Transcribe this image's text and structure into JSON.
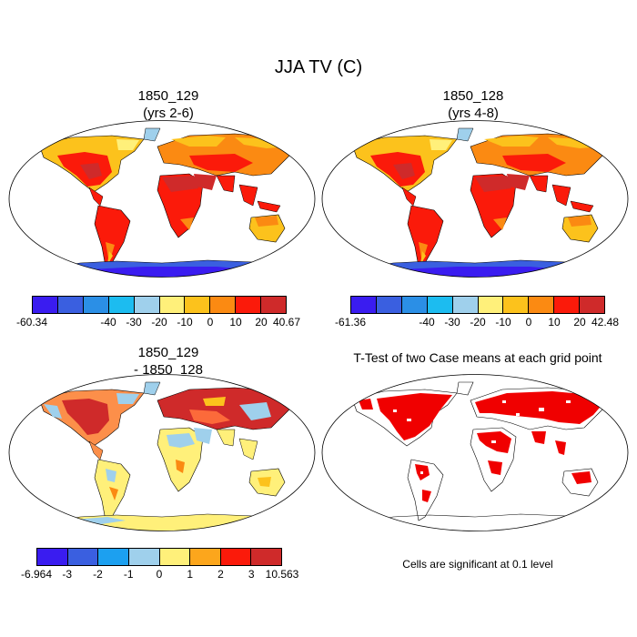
{
  "title": "JJA TV (C)",
  "panels": [
    {
      "title_line1": "1850_129",
      "title_line2": "(yrs 2-6)",
      "colors": [
        "#3a1cf0",
        "#3a5fe0",
        "#2b8fe6",
        "#1cbcf0",
        "#9fd0ec",
        "#fff07a",
        "#fcc21c",
        "#fb8a12",
        "#fb1a0a",
        "#cf2a2a"
      ],
      "labels": [
        "-60.34",
        "-40",
        "-30",
        "-20",
        "-10",
        "0",
        "10",
        "20",
        "40.67"
      ]
    },
    {
      "title_line1": "1850_128",
      "title_line2": "(yrs 4-8)",
      "colors": [
        "#3a1cf0",
        "#3a5fe0",
        "#2b8fe6",
        "#1cbcf0",
        "#9fd0ec",
        "#fff07a",
        "#fcc21c",
        "#fb8a12",
        "#fb1a0a",
        "#cf2a2a"
      ],
      "labels": [
        "-61.36",
        "-40",
        "-30",
        "-20",
        "-10",
        "0",
        "10",
        "20",
        "42.48"
      ]
    },
    {
      "title_line1": "1850_129",
      "title_line2": "- 1850_128",
      "colors": [
        "#3a1cf0",
        "#3a5fe0",
        "#1ca0f0",
        "#9fd0ec",
        "#fff07a",
        "#fca61c",
        "#fb1a0a",
        "#cf2a2a"
      ],
      "labels": [
        "-6.964",
        "-3",
        "-2",
        "-1",
        "0",
        "1",
        "2",
        "3",
        "10.563"
      ]
    },
    {
      "title_line1": "T-Test of two Case means at each grid point",
      "note": "Cells are significant at 0.1 level"
    }
  ]
}
